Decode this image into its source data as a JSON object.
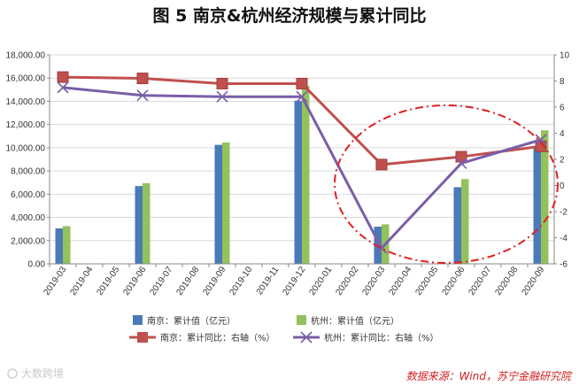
{
  "title": "图 5    南京&杭州经济规模与累计同比",
  "source": "数据来源：Wind，苏宁金融研究院",
  "watermark": "大数跨境",
  "colors": {
    "nj_bar": "#4a7ab8",
    "hz_bar": "#93c15c",
    "nj_line": "#c0504d",
    "hz_line": "#7a5ea8",
    "ellipse": "#e02020"
  },
  "chart_data": {
    "type": "bar",
    "categories": [
      "2019-03",
      "2019-04",
      "2019-05",
      "2019-06",
      "2019-07",
      "2019-08",
      "2019-09",
      "2019-10",
      "2019-11",
      "2019-12",
      "2020-01",
      "2020-02",
      "2020-03",
      "2020-04",
      "2020-05",
      "2020-06",
      "2020-07",
      "2020-08",
      "2020-09"
    ],
    "left_axis": {
      "ylim": [
        0,
        18000
      ],
      "ticks": [
        "0.00",
        "2,000.00",
        "4,000.00",
        "6,000.00",
        "8,000.00",
        "10,000.00",
        "12,000.00",
        "14,000.00",
        "16,000.00",
        "18,000.00"
      ]
    },
    "right_axis": {
      "ylim": [
        -6,
        10
      ],
      "ticks": [
        "-6",
        "-4",
        "-2",
        "0",
        "2",
        "4",
        "6",
        "8",
        "10"
      ]
    },
    "series": [
      {
        "name": "南京：累计值（亿元）",
        "type": "bar",
        "axis": "left",
        "values": [
          3050,
          null,
          null,
          6700,
          null,
          null,
          10250,
          null,
          null,
          14050,
          null,
          null,
          3200,
          null,
          null,
          6600,
          null,
          null,
          10100
        ]
      },
      {
        "name": "杭州：累计值（亿元）",
        "type": "bar",
        "axis": "left",
        "values": [
          3250,
          null,
          null,
          6950,
          null,
          null,
          10450,
          null,
          null,
          15350,
          null,
          null,
          3400,
          null,
          null,
          7300,
          null,
          null,
          11500
        ]
      },
      {
        "name": "南京：累计同比：右轴（%）",
        "type": "line",
        "axis": "right",
        "marker": "square",
        "values": [
          8.3,
          null,
          null,
          8.2,
          null,
          null,
          7.8,
          null,
          null,
          7.8,
          null,
          null,
          1.6,
          null,
          null,
          2.2,
          null,
          null,
          3.0
        ]
      },
      {
        "name": "杭州：累计同比：右轴（%）",
        "type": "line",
        "axis": "right",
        "marker": "x",
        "values": [
          7.5,
          null,
          null,
          6.9,
          null,
          null,
          6.8,
          null,
          null,
          6.8,
          null,
          null,
          -4.8,
          null,
          null,
          1.7,
          null,
          null,
          3.5
        ]
      }
    ]
  }
}
